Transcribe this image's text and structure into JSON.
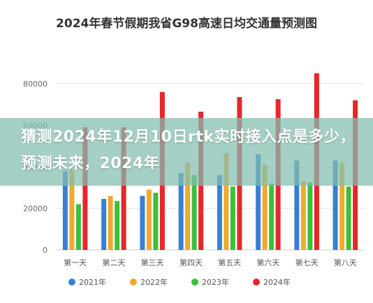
{
  "chart_data": {
    "type": "bar",
    "title": "2024年春节假期我省G98高速日均交通量预测图",
    "categories": [
      "第一天",
      "第二天",
      "第三天",
      "第四天",
      "第五天",
      "第六天",
      "第七天",
      "第八天"
    ],
    "series": [
      {
        "name": "2021年",
        "color": "#3a7fd5",
        "values": [
          38000,
          24500,
          26000,
          37000,
          36000,
          46000,
          43000,
          43000
        ]
      },
      {
        "name": "2022年",
        "color": "#f0a92e",
        "values": [
          38500,
          26000,
          29000,
          42000,
          46500,
          41000,
          33000,
          42000
        ]
      },
      {
        "name": "2023年",
        "color": "#3cc03c",
        "values": [
          22000,
          23500,
          27500,
          36000,
          30500,
          32000,
          32500,
          30500
        ]
      },
      {
        "name": "2024年",
        "color": "#e8262b",
        "values": [
          59000,
          59000,
          76000,
          66500,
          73500,
          72500,
          85000,
          72000
        ]
      }
    ],
    "ylim": [
      0,
      90000
    ],
    "yticks": [
      0,
      20000,
      40000,
      60000,
      80000
    ],
    "ytick_labels": [
      "0",
      "20000",
      "40000",
      "60000",
      "80000"
    ],
    "grid": true,
    "legend_position": "bottom"
  },
  "overlay": {
    "text": "猜测2024年12月10日rtk实时接入点是多少，预测未来，2024年"
  }
}
